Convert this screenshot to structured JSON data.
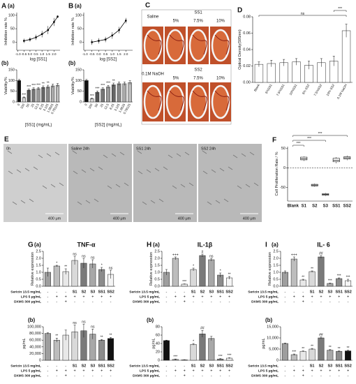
{
  "chart_data": [
    {
      "type": "line",
      "panel": "A",
      "subtitle": "(a)",
      "xlabel": "log [SS1]",
      "ylabel": "Inhibition rate %",
      "color": "#000000",
      "x": [
        -0.5,
        0,
        0.5,
        1,
        1.5,
        2,
        2.3
      ],
      "values": [
        5,
        10,
        18,
        30,
        45,
        75,
        95
      ],
      "errors": [
        8,
        8,
        10,
        12,
        15,
        15,
        5
      ],
      "xlim": [
        -1.1,
        2.5
      ],
      "xticks": [
        {
          "value": -1,
          "label": "-1.0"
        },
        {
          "value": -0.5,
          "label": "-0.5"
        },
        {
          "value": 0,
          "label": "0.0"
        },
        {
          "value": 0.5,
          "label": "0.5"
        },
        {
          "value": 1,
          "label": "1.0"
        },
        {
          "value": 1.5,
          "label": "1.5"
        },
        {
          "value": 2,
          "label": "2.0"
        }
      ],
      "ylim": [
        -30,
        110
      ],
      "yticks": [
        0,
        50,
        100
      ]
    },
    {
      "type": "bar",
      "subtitle": "(b)",
      "xlabel": "[SS1] (mg/mL)",
      "ylabel": "Viability/%",
      "categories": [
        "0",
        "100",
        "50",
        "25",
        "12.5",
        "6.25",
        "3.125",
        "1.5625",
        "0.78125"
      ],
      "values": [
        100,
        20,
        55,
        60,
        62,
        68,
        70,
        75,
        78
      ],
      "errors": [
        5,
        3,
        5,
        6,
        6,
        7,
        8,
        8,
        8
      ],
      "colors": [
        "#111111",
        "#d0d0d0",
        "#555555",
        "#777777",
        "#999999",
        "#666666",
        "#888888",
        "#aaaaaa",
        "#bbbbbb"
      ],
      "annotations": [
        null,
        "***",
        "***",
        "***",
        "***",
        "**",
        "**",
        null,
        null
      ],
      "ylim": [
        0,
        150
      ],
      "yticks": [
        0,
        50,
        100,
        150
      ]
    },
    {
      "type": "line",
      "panel": "B",
      "subtitle": "(a)",
      "xlabel": "log [SS2]",
      "ylabel": "Inhibition rate %",
      "color": "#000000",
      "x": [
        -0.5,
        0,
        0.5,
        1,
        1.5,
        2
      ],
      "values": [
        0,
        5,
        10,
        25,
        45,
        80
      ],
      "errors": [
        10,
        10,
        10,
        12,
        12,
        10
      ],
      "xlim": [
        -1.1,
        2.5
      ],
      "xticks": [
        {
          "value": -1,
          "label": "-1.0"
        },
        {
          "value": -0.5,
          "label": "-0.5"
        },
        {
          "value": 0,
          "label": "0.0"
        },
        {
          "value": 0.5,
          "label": "0.5"
        },
        {
          "value": 1,
          "label": "1.0"
        },
        {
          "value": 1.5,
          "label": "1.5"
        },
        {
          "value": 2,
          "label": "2.0"
        }
      ],
      "ylim": [
        -30,
        110
      ],
      "yticks": [
        0,
        50,
        100
      ]
    },
    {
      "type": "bar",
      "subtitle": "(b)",
      "xlabel": "[SS2] (mg/mL)",
      "ylabel": "Viability/%",
      "categories": [
        "0",
        "100",
        "50",
        "25",
        "12.5",
        "6.25",
        "3.125",
        "1.5625",
        "0.78125"
      ],
      "values": [
        100,
        15,
        45,
        60,
        70,
        80,
        85,
        85,
        90
      ],
      "errors": [
        5,
        3,
        6,
        6,
        7,
        8,
        8,
        8,
        9
      ],
      "colors": [
        "#111111",
        "#d0d0d0",
        "#555555",
        "#777777",
        "#999999",
        "#666666",
        "#888888",
        "#aaaaaa",
        "#bbbbbb"
      ],
      "annotations": [
        null,
        "***",
        "***",
        "***",
        "***",
        "**",
        null,
        null,
        null
      ],
      "ylim": [
        0,
        150
      ],
      "yticks": [
        0,
        50,
        100,
        150
      ]
    },
    {
      "type": "bar",
      "panel": "D",
      "ylabel": "Optical Density(595nm)",
      "categories": [
        "Blank",
        "5%SS1",
        "7.5%SS1",
        "10%SS1",
        "5% SS2",
        "7.5%SS2",
        "10% SS2",
        "0.1M NaOH"
      ],
      "values": [
        0.022,
        0.023,
        0.024,
        0.025,
        0.021,
        0.024,
        0.026,
        0.063
      ],
      "errors": [
        0.003,
        0.004,
        0.004,
        0.004,
        0.005,
        0.005,
        0.006,
        0.008
      ],
      "color": "#ffffff",
      "brackets": [
        {
          "from": "Blank",
          "to": "0.1M NaOH",
          "label": "ns"
        },
        {
          "from": "10% SS2",
          "to": "0.1M NaOH",
          "label": "***"
        }
      ],
      "ylim": [
        0,
        0.08
      ],
      "yticks": [
        {
          "value": 0,
          "label": "0.00"
        },
        {
          "value": 0.02,
          "label": "0.02"
        },
        {
          "value": 0.04,
          "label": "0.04"
        },
        {
          "value": 0.06,
          "label": "0.06"
        },
        {
          "value": 0.08,
          "label": "0.08"
        }
      ]
    },
    {
      "type": "box",
      "panel": "F",
      "ylabel": "Cell Proliferation Rate / %",
      "categories": [
        "Blank",
        "S1",
        "S2",
        "S3",
        "SS1",
        "SS2"
      ],
      "boxes": [
        null,
        {
          "min": 18,
          "q1": 21,
          "median": 24,
          "q3": 28,
          "max": 30
        },
        {
          "min": -48,
          "q1": -46,
          "median": -44,
          "q3": -42,
          "max": -40
        },
        {
          "min": -72,
          "q1": -70,
          "median": -68,
          "q3": -66,
          "max": -64
        },
        {
          "min": 12,
          "q1": 16,
          "median": 20,
          "q3": 25,
          "max": 28
        },
        {
          "min": 20,
          "q1": 23,
          "median": 26,
          "q3": 29,
          "max": 32
        }
      ],
      "reference_line": 0,
      "brackets": [
        {
          "from": "Blank",
          "to": "S1",
          "label": "***"
        },
        {
          "from": "Blank",
          "to": "S3",
          "label": "***"
        },
        {
          "from": "Blank",
          "to": "SS2",
          "label": "***"
        }
      ],
      "ylim": [
        -85,
        55
      ],
      "yticks": [
        -50,
        0,
        50
      ]
    },
    {
      "type": "bar",
      "panel": "G",
      "subtitle": "(a)",
      "title": "TNF-α",
      "ylabel": "Relative expression",
      "show_treatments": true,
      "categories": [
        null,
        null,
        null,
        "S1",
        "S2",
        "S3",
        "SS1",
        "SS2"
      ],
      "values": [
        1.0,
        1.45,
        1.05,
        1.85,
        1.65,
        1.6,
        1.2,
        0.85
      ],
      "errors": [
        0.3,
        0.05,
        0.2,
        0.3,
        0.35,
        0.3,
        0.15,
        0.3
      ],
      "colors": [
        "#9e9e9e",
        "#bdbdbd",
        "#e8e8e8",
        "#d9d9d9",
        "#7a7a7a",
        "#a8a8a8",
        "#8c8c8c",
        "#f5f5f5"
      ],
      "annotations": [
        null,
        "*",
        "**",
        "ns",
        "ns",
        "ns",
        "*",
        "ns"
      ],
      "ylim": [
        0,
        2.5
      ],
      "yticks": [
        {
          "value": 0,
          "label": "0.0"
        },
        {
          "value": 0.5,
          "label": "0.5"
        },
        {
          "value": 1,
          "label": "1.0"
        },
        {
          "value": 1.5,
          "label": "1.5"
        },
        {
          "value": 2,
          "label": "2.0"
        },
        {
          "value": 2.5,
          "label": "2.5"
        }
      ]
    },
    {
      "type": "bar",
      "subtitle": "(b)",
      "ylabel": "pg/mL",
      "show_treatments": true,
      "categories": [
        null,
        null,
        null,
        "S1",
        "S2",
        "S3",
        "SS1",
        "SS2"
      ],
      "values": [
        80000,
        60000,
        75000,
        85000,
        88000,
        78000,
        60000,
        65000
      ],
      "errors": [
        2000,
        6000,
        15000,
        20000,
        20000,
        15000,
        2000,
        3000
      ],
      "colors": [
        "#9e9e9e",
        "#bdbdbd",
        "#e8e8e8",
        "#d9d9d9",
        "#7a7a7a",
        "#a8a8a8",
        "#8c8c8c",
        "#111111"
      ],
      "annotations": [
        null,
        "**",
        null,
        "ns",
        "ns",
        "ns",
        "**",
        "**"
      ],
      "ylim": [
        0,
        100000
      ],
      "yticks": [
        0,
        {
          "value": 20000,
          "label": "20,000"
        },
        {
          "value": 40000,
          "label": "40,000"
        },
        {
          "value": 60000,
          "label": "60,000"
        },
        {
          "value": 80000,
          "label": "80,000"
        },
        {
          "value": 100000,
          "label": "100,000"
        }
      ]
    },
    {
      "type": "bar",
      "panel": "H",
      "subtitle": "(a)",
      "title": "IL-1β",
      "ylabel": "Relative expression",
      "show_treatments": true,
      "categories": [
        null,
        null,
        null,
        "S1",
        "S2",
        "S3",
        "SS1",
        "SS2"
      ],
      "values": [
        1.0,
        2.0,
        0.15,
        1.2,
        2.2,
        1.9,
        0.8,
        0.6
      ],
      "errors": [
        0.2,
        0.1,
        0.02,
        0.1,
        0.1,
        0.1,
        0.15,
        0.1
      ],
      "colors": [
        "#9e9e9e",
        "#bdbdbd",
        "#e8e8e8",
        "#d9d9d9",
        "#7a7a7a",
        "#a8a8a8",
        "#8c8c8c",
        "#f5f5f5"
      ],
      "annotations": [
        null,
        "+++",
        "***",
        "*",
        "#",
        "ns",
        "*",
        "**"
      ],
      "ylim": [
        0,
        2.5
      ],
      "yticks": [
        {
          "value": 0,
          "label": "0.0"
        },
        {
          "value": 0.5,
          "label": "0.5"
        },
        {
          "value": 1,
          "label": "1.0"
        },
        {
          "value": 1.5,
          "label": "1.5"
        },
        {
          "value": 2,
          "label": "2.0"
        },
        {
          "value": 2.5,
          "label": "2.5"
        }
      ]
    },
    {
      "type": "bar",
      "subtitle": "(b)",
      "ylabel": "pg/mL",
      "show_treatments": true,
      "categories": [
        null,
        null,
        null,
        "S1",
        "S2",
        "S3",
        "SS1",
        "SS2"
      ],
      "values": [
        47,
        2,
        1,
        38,
        63,
        52,
        3,
        5
      ],
      "errors": [
        1,
        1,
        0.5,
        2,
        8,
        5,
        1,
        1
      ],
      "colors": [
        "#111111",
        "#bdbdbd",
        "#e8e8e8",
        "#d9d9d9",
        "#7a7a7a",
        "#a8a8a8",
        "#8c8c8c",
        "#f5f5f5"
      ],
      "annotations": [
        null,
        "***",
        null,
        "*",
        "##",
        null,
        "***",
        "***"
      ],
      "ylim": [
        0,
        80
      ],
      "yticks": [
        0,
        20,
        40,
        60,
        80
      ]
    },
    {
      "type": "bar",
      "panel": "I",
      "subtitle": "(a)",
      "title": "IL- 6",
      "ylabel": "Relative expression",
      "show_treatments": true,
      "categories": [
        null,
        null,
        null,
        "S1",
        "S2",
        "S3",
        "SS1",
        "SS2"
      ],
      "values": [
        1.0,
        1.95,
        0.45,
        1.05,
        2.1,
        0.2,
        0.55,
        0.4
      ],
      "errors": [
        0.1,
        0.15,
        0.05,
        0.05,
        0.1,
        0.03,
        0.05,
        0.1
      ],
      "colors": [
        "#9e9e9e",
        "#bdbdbd",
        "#e8e8e8",
        "#d9d9d9",
        "#7a7a7a",
        "#a8a8a8",
        "#8c8c8c",
        "#f5f5f5"
      ],
      "annotations": [
        null,
        "+++",
        "**",
        "**",
        "##",
        "***",
        "***",
        "***"
      ],
      "ylim": [
        0,
        2.5
      ],
      "yticks": [
        {
          "value": 0,
          "label": "0.0"
        },
        {
          "value": 0.5,
          "label": "0.5"
        },
        {
          "value": 1,
          "label": "1.0"
        },
        {
          "value": 1.5,
          "label": "1.5"
        },
        {
          "value": 2,
          "label": "2.0"
        },
        {
          "value": 2.5,
          "label": "2.5"
        }
      ]
    },
    {
      "type": "bar",
      "subtitle": "(b)",
      "ylabel": "pg/mL",
      "show_treatments": true,
      "categories": [
        null,
        null,
        null,
        "S1",
        "S2",
        "S3",
        "SS1",
        "SS2"
      ],
      "values": [
        7500,
        2500,
        4000,
        5000,
        10000,
        4500,
        4000,
        4200
      ],
      "errors": [
        200,
        300,
        200,
        300,
        400,
        300,
        200,
        300
      ],
      "colors": [
        "#9e9e9e",
        "#bdbdbd",
        "#e8e8e8",
        "#d9d9d9",
        "#7a7a7a",
        "#a8a8a8",
        "#8c8c8c",
        "#111111"
      ],
      "annotations": [
        null,
        "***",
        "**",
        "**",
        "##",
        "**",
        "**",
        "**"
      ],
      "ylim": [
        0,
        15000
      ],
      "yticks": [
        0,
        {
          "value": 5000,
          "label": "5,000"
        },
        {
          "value": 10000,
          "label": "10,000"
        },
        {
          "value": 15000,
          "label": "15,000"
        }
      ]
    }
  ],
  "treatments": [
    {
      "label": "Sericin 13.5 mg/mL",
      "marks": [
        "-",
        "-",
        "-"
      ]
    },
    {
      "label": "LPS 5 μg/mL",
      "marks": [
        "-",
        "+",
        "+",
        "+",
        "+",
        "+",
        "+",
        "+"
      ]
    },
    {
      "label": "DXMS 300 μg/mL",
      "marks": [
        "-",
        "-",
        "+",
        "-",
        "-",
        "-",
        "-",
        "-"
      ]
    }
  ],
  "images": {
    "C": {
      "panel": "C",
      "row_labels": [
        "Saline",
        "0.1M NaOH"
      ],
      "groups": [
        "SS1",
        "SS2"
      ],
      "concentrations": [
        "5%",
        "7.5%",
        "10%"
      ]
    },
    "E": {
      "panel": "E",
      "labels": [
        "0h",
        "Saline 24h",
        "SS1 24h",
        "SS2 24h"
      ],
      "scale": "400 μm"
    }
  }
}
